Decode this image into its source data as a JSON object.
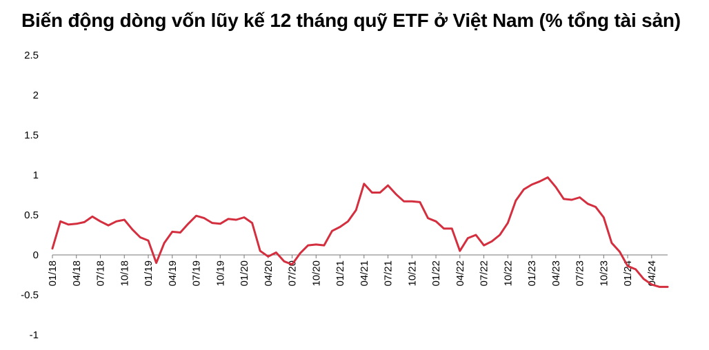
{
  "chart_data": {
    "type": "line",
    "title": "Biến động dòng vốn lũy kế 12 tháng quỹ ETF ở Việt Nam (% tổng tài sản)",
    "xlabel": "",
    "ylabel": "",
    "ylim": [
      -1,
      2.5
    ],
    "y_ticks": [
      "2.5",
      "2",
      "1.5",
      "1",
      "0.5",
      "0",
      "-0.5",
      "-1"
    ],
    "x_ticks": [
      "01/18",
      "04/18",
      "07/18",
      "10/18",
      "01/19",
      "04/19",
      "07/19",
      "10/19",
      "01/20",
      "04/20",
      "07/20",
      "10/20",
      "01/21",
      "04/21",
      "07/21",
      "10/21",
      "01/22",
      "04/22",
      "07/22",
      "10/22",
      "01/23",
      "04/23",
      "07/23",
      "10/23",
      "01/24",
      "04/24"
    ],
    "grid": false,
    "legend": "none",
    "line_color": "#d32f3f",
    "series": [
      {
        "name": "",
        "x": [
          "01/18",
          "02/18",
          "03/18",
          "04/18",
          "05/18",
          "06/18",
          "07/18",
          "08/18",
          "09/18",
          "10/18",
          "11/18",
          "12/18",
          "01/19",
          "02/19",
          "03/19",
          "04/19",
          "05/19",
          "06/19",
          "07/19",
          "08/19",
          "09/19",
          "10/19",
          "11/19",
          "12/19",
          "01/20",
          "02/20",
          "03/20",
          "04/20",
          "05/20",
          "06/20",
          "07/20",
          "08/20",
          "09/20",
          "10/20",
          "11/20",
          "12/20",
          "01/21",
          "02/21",
          "03/21",
          "04/21",
          "05/21",
          "06/21",
          "07/21",
          "08/21",
          "09/21",
          "10/21",
          "11/21",
          "12/21",
          "01/22",
          "02/22",
          "03/22",
          "04/22",
          "05/22",
          "06/22",
          "07/22",
          "08/22",
          "09/22",
          "10/22",
          "11/22",
          "12/22",
          "01/23",
          "02/23",
          "03/23",
          "04/23",
          "05/23",
          "06/23",
          "07/23",
          "08/23",
          "09/23",
          "10/23",
          "11/23",
          "12/23",
          "01/24",
          "02/24",
          "03/24",
          "04/24",
          "05/24",
          "06/24"
        ],
        "values": [
          0.08,
          0.42,
          0.38,
          0.39,
          0.41,
          0.48,
          0.42,
          0.37,
          0.42,
          0.44,
          0.32,
          0.22,
          0.18,
          -0.1,
          0.15,
          0.29,
          0.28,
          0.39,
          0.49,
          0.46,
          0.4,
          0.39,
          0.45,
          0.44,
          0.47,
          0.4,
          0.05,
          -0.02,
          0.03,
          -0.08,
          -0.12,
          0.02,
          0.12,
          0.13,
          0.12,
          0.3,
          0.35,
          0.42,
          0.56,
          0.89,
          0.78,
          0.78,
          0.87,
          0.76,
          0.67,
          0.67,
          0.66,
          0.46,
          0.42,
          0.33,
          0.33,
          0.05,
          0.21,
          0.25,
          0.12,
          0.17,
          0.25,
          0.4,
          0.68,
          0.82,
          0.88,
          0.92,
          0.97,
          0.85,
          0.7,
          0.69,
          0.72,
          0.64,
          0.6,
          0.47,
          0.15,
          0.04,
          -0.14,
          -0.18,
          -0.3,
          -0.37,
          -0.4,
          -0.4
        ]
      }
    ]
  }
}
